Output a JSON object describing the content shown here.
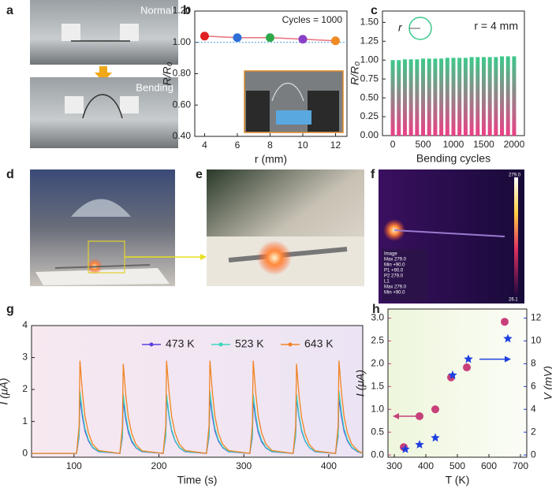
{
  "panel_labels": [
    "a",
    "b",
    "c",
    "d",
    "e",
    "f",
    "g",
    "h"
  ],
  "photos": {
    "a_top": "Normal",
    "a_bottom": "Bending",
    "f_texts": [
      "279.0",
      "Image",
      "Max  279.0",
      "Min  +90.0",
      "P1  +90.0",
      "P2  279.0",
      "L1",
      "Max  279.0",
      "Min  +90.0",
      "26.1"
    ]
  },
  "chart_data": [
    {
      "type": "scatter",
      "x_label": "r (mm)",
      "y_label": "R/R₀",
      "annotation": "Cycles = 1000",
      "x": [
        4,
        6,
        8,
        10,
        12
      ],
      "values": [
        1.04,
        1.03,
        1.03,
        1.02,
        1.01
      ],
      "colors": [
        "#e02020",
        "#2f6fd8",
        "#2fa84a",
        "#8a3fc8",
        "#f08a24"
      ],
      "line_color": "#e8707c",
      "reference_line": 1,
      "xlim": [
        3.4,
        12.7
      ],
      "xticks": [
        4,
        6,
        8,
        10,
        12
      ],
      "ylim": [
        0.4,
        1.2
      ],
      "yticks": [
        {
          "value": 0.4,
          "label": "0.40"
        },
        {
          "value": 0.6,
          "label": "0.60"
        },
        {
          "value": 0.8,
          "label": "0.80"
        },
        {
          "value": 1,
          "label": "1.00"
        },
        {
          "value": 1.2,
          "label": "1.20"
        }
      ]
    },
    {
      "type": "bar",
      "x_label": "Bending cycles",
      "y_label": "R/R₀",
      "annotation": "r = 4 mm",
      "icon_label": "r",
      "x": [
        0,
        100,
        200,
        300,
        400,
        500,
        600,
        700,
        800,
        900,
        1000,
        1100,
        1200,
        1300,
        1400,
        1500,
        1600,
        1700,
        1800,
        1900,
        2000
      ],
      "values": [
        1.0,
        1.0,
        1.01,
        1.01,
        1.01,
        1.02,
        1.02,
        1.02,
        1.02,
        1.03,
        1.03,
        1.03,
        1.03,
        1.04,
        1.04,
        1.04,
        1.04,
        1.04,
        1.05,
        1.05,
        1.05
      ],
      "colors": [
        "#3cc98a",
        "#ec3f86"
      ],
      "xlim": [
        -170,
        2170
      ],
      "xticks": [
        0,
        500,
        1000,
        1500,
        2000
      ],
      "ylim": [
        0,
        1.65
      ],
      "yticks": [
        {
          "value": 0,
          "label": "0.00"
        },
        {
          "value": 0.25,
          "label": "0.25"
        },
        {
          "value": 0.5,
          "label": "0.50"
        },
        {
          "value": 0.75,
          "label": "0.75"
        },
        {
          "value": 1,
          "label": "1.00"
        },
        {
          "value": 1.25,
          "label": "1.25"
        },
        {
          "value": 1.5,
          "label": "1.50"
        }
      ]
    },
    {
      "type": "line",
      "x_label": "Time (s)",
      "y_label": "I (μA)",
      "background": [
        "#f7e8f0",
        "#ece4f4"
      ],
      "x": [
        50,
        103,
        106,
        107,
        110,
        113,
        117,
        122,
        129,
        154,
        157,
        158,
        161,
        164,
        168,
        173,
        180,
        205,
        208,
        209,
        212,
        215,
        219,
        224,
        231,
        256,
        259,
        260,
        263,
        266,
        270,
        275,
        282,
        307,
        310,
        311,
        314,
        317,
        321,
        326,
        333,
        358,
        361,
        362,
        365,
        368,
        372,
        377,
        384,
        408,
        411,
        412,
        415,
        418,
        422,
        427,
        434,
        440
      ],
      "series": [
        {
          "name": "473 K",
          "color": "#5a3fe0",
          "values": [
            0,
            0,
            0.53,
            1.75,
            1.14,
            0.7,
            0.39,
            0.18,
            0.05,
            0,
            0.5,
            1.65,
            1.07,
            0.66,
            0.36,
            0.17,
            0.05,
            0,
            0.53,
            1.75,
            1.14,
            0.7,
            0.39,
            0.18,
            0.05,
            0,
            0.53,
            1.75,
            1.14,
            0.7,
            0.39,
            0.18,
            0.05,
            0,
            0.5,
            1.65,
            1.07,
            0.66,
            0.36,
            0.17,
            0.05,
            0,
            0.53,
            1.75,
            1.14,
            0.7,
            0.39,
            0.18,
            0.05,
            0,
            0.53,
            1.75,
            1.14,
            0.7,
            0.39,
            0.18,
            0.05,
            0
          ]
        },
        {
          "name": "523 K",
          "color": "#3ad6c0",
          "values": [
            0,
            0,
            0.59,
            1.95,
            1.27,
            0.78,
            0.43,
            0.2,
            0.06,
            0,
            0.56,
            1.85,
            1.2,
            0.74,
            0.41,
            0.19,
            0.06,
            0,
            0.56,
            1.85,
            1.2,
            0.74,
            0.41,
            0.19,
            0.06,
            0,
            0.59,
            1.95,
            1.27,
            0.78,
            0.43,
            0.2,
            0.06,
            0,
            0.56,
            1.85,
            1.2,
            0.74,
            0.41,
            0.19,
            0.06,
            0,
            0.56,
            1.85,
            1.2,
            0.74,
            0.41,
            0.19,
            0.06,
            0,
            0.59,
            1.95,
            1.27,
            0.78,
            0.43,
            0.2,
            0.06,
            0
          ]
        },
        {
          "name": "643 K",
          "color": "#f08424",
          "values": [
            0,
            0,
            0.87,
            2.9,
            1.89,
            1.16,
            0.64,
            0.29,
            0.09,
            0,
            0.84,
            2.8,
            1.82,
            1.12,
            0.62,
            0.28,
            0.08,
            0,
            0.87,
            2.9,
            1.89,
            1.16,
            0.64,
            0.29,
            0.09,
            0,
            0.87,
            2.9,
            1.89,
            1.16,
            0.64,
            0.29,
            0.09,
            0,
            0.87,
            2.9,
            1.89,
            1.16,
            0.64,
            0.29,
            0.09,
            0,
            0.84,
            2.8,
            1.82,
            1.12,
            0.62,
            0.28,
            0.08,
            0,
            0.87,
            2.9,
            1.89,
            1.16,
            0.64,
            0.29,
            0.09,
            0
          ]
        }
      ],
      "xlim": [
        50,
        440
      ],
      "xticks": [
        100,
        200,
        300,
        400
      ],
      "ylim": [
        -0.12,
        4
      ],
      "yticks": [
        0,
        1,
        2,
        3,
        4
      ]
    },
    {
      "type": "scatter",
      "x_label": "T (K)",
      "y_label": "I (μA)",
      "y2_label": "V (mV)",
      "background": [
        "#eef6dc",
        "#fbfdf6"
      ],
      "x": [
        330,
        380,
        430,
        480,
        530,
        650
      ],
      "series": [
        {
          "color": "#c8407a",
          "marker": "circle",
          "values": [
            0.17,
            0.85,
            1.0,
            1.7,
            1.92,
            2.92
          ],
          "x": [
            330,
            380,
            430,
            480,
            530,
            650
          ]
        },
        {
          "color": "#1f3fe0",
          "marker": "star",
          "axis": "y2",
          "values": [
            0.5,
            0.9,
            1.5,
            7.0,
            8.4,
            10.2
          ],
          "x": [
            335,
            380,
            430,
            485,
            535,
            660
          ]
        }
      ],
      "xlim": [
        280,
        720
      ],
      "xticks": [
        300,
        400,
        500,
        600,
        700
      ],
      "ylim": [
        -0.05,
        3.2
      ],
      "yticks": [
        {
          "value": 0,
          "label": "0.0"
        },
        0.5,
        {
          "value": 1,
          "label": "1.0"
        },
        1.5,
        {
          "value": 2,
          "label": "2.0"
        },
        2.5,
        {
          "value": 3,
          "label": "3.0"
        }
      ],
      "y2lim": [
        -0.2,
        12.8
      ],
      "y2ticks": [
        0,
        2,
        4,
        6,
        8,
        10,
        12
      ]
    }
  ]
}
